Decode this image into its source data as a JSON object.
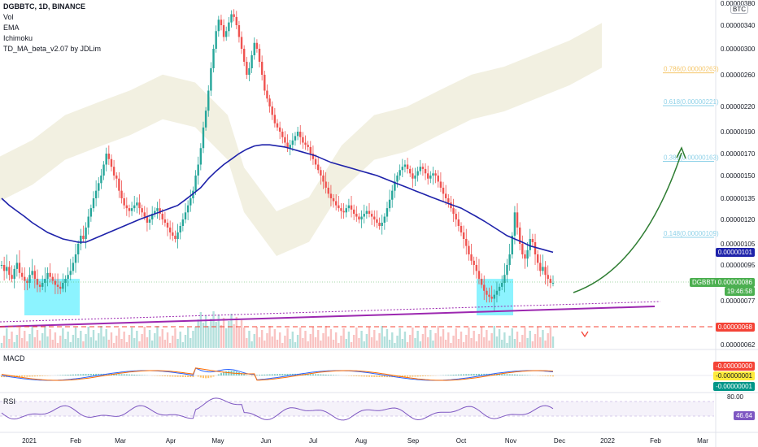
{
  "legend": {
    "title": "DGBBTC, 1D, BINANCE",
    "lines": [
      "Vol",
      "EMA",
      "Ichimoku",
      "TD_MA_beta_v2.07 by JDLim"
    ]
  },
  "unit_label": "BTC",
  "panes": {
    "macd": "MACD",
    "rsi": "RSI"
  },
  "colors": {
    "up": "#26a69a",
    "down": "#ef5350",
    "ema": "#1e22aa",
    "cloud": "#e8e3c8",
    "box": "#00e5ff",
    "trendline": "#9c27b0",
    "arrow": "#2e7d32",
    "dashed_red": "#f44336"
  },
  "chart_data": {
    "type": "candlestick",
    "symbol": "DGBBTC",
    "price_axis": {
      "ticks": [
        "0.00000380",
        "0.00000340",
        "0.00000300",
        "0.00000260",
        "0.00000220",
        "0.00000190",
        "0.00000170",
        "0.00000150",
        "0.00000135",
        "0.00000120",
        "0.00000105",
        "0.00000095",
        "0.00000077",
        "0.00000062"
      ],
      "tick_values": [
        380,
        340,
        300,
        260,
        220,
        190,
        170,
        150,
        135,
        120,
        105,
        95,
        77,
        62
      ],
      "range": [
        62,
        380
      ]
    },
    "time_axis": {
      "labels": [
        "2021",
        "Feb",
        "Mar",
        "Apr",
        "May",
        "Jun",
        "Jul",
        "Aug",
        "Sep",
        "Oct",
        "Nov",
        "Dec",
        "2022",
        "Feb",
        "Mar"
      ]
    },
    "price_tags": {
      "current": "0.00000086",
      "countdown": "19:46:58",
      "symbol_tag": "DGBBTC",
      "ema_value": "0.00000101",
      "stop_value": "0.00000068"
    },
    "fib_levels": [
      {
        "label": "0.786(0.00000263)",
        "value": 263,
        "color": "#f5c76b"
      },
      {
        "label": "0.618(0.00000221)",
        "value": 221,
        "color": "#8ed1e8"
      },
      {
        "label": "0.382(0.00000163)",
        "value": 163,
        "color": "#8ed1e8"
      },
      {
        "label": "0.148(0.00000109)",
        "value": 109,
        "color": "#8ed1e8"
      }
    ],
    "candles_close": [
      95,
      92,
      94,
      90,
      88,
      93,
      96,
      91,
      89,
      87,
      86,
      90,
      92,
      88,
      85,
      84,
      86,
      88,
      91,
      89,
      87,
      85,
      84,
      83,
      86,
      88,
      90,
      92,
      96,
      100,
      105,
      110,
      108,
      115,
      122,
      128,
      135,
      140,
      145,
      150,
      160,
      170,
      165,
      158,
      150,
      148,
      140,
      135,
      130,
      128,
      126,
      128,
      130,
      132,
      128,
      125,
      122,
      118,
      120,
      124,
      126,
      128,
      124,
      120,
      118,
      115,
      112,
      110,
      108,
      112,
      116,
      120,
      125,
      130,
      135,
      140,
      150,
      160,
      175,
      195,
      215,
      240,
      270,
      300,
      330,
      350,
      340,
      320,
      330,
      345,
      360,
      355,
      340,
      320,
      300,
      280,
      260,
      270,
      290,
      310,
      300,
      280,
      260,
      240,
      230,
      220,
      210,
      200,
      195,
      190,
      185,
      180,
      175,
      178,
      182,
      186,
      190,
      185,
      180,
      178,
      176,
      170,
      165,
      160,
      155,
      150,
      146,
      142,
      138,
      135,
      133,
      130,
      128,
      126,
      125,
      128,
      130,
      127,
      124,
      122,
      120,
      122,
      124,
      126,
      124,
      122,
      120,
      118,
      116,
      118,
      122,
      128,
      134,
      140,
      146,
      150,
      155,
      158,
      160,
      156,
      152,
      148,
      150,
      154,
      158,
      156,
      152,
      148,
      150,
      152,
      150,
      146,
      142,
      138,
      135,
      132,
      128,
      124,
      120,
      116,
      112,
      108,
      104,
      100,
      97,
      95,
      92,
      88,
      85,
      82,
      80,
      79,
      78,
      80,
      82,
      84,
      86,
      90,
      95,
      100,
      110,
      125,
      115,
      105,
      100,
      98,
      102,
      108,
      106,
      100,
      96,
      92,
      94,
      90,
      88,
      86,
      86
    ],
    "ema": [
      135,
      130,
      126,
      122,
      118,
      115,
      112,
      110,
      108,
      107,
      106,
      106,
      108,
      110,
      112,
      114,
      116,
      118,
      120,
      122,
      124,
      126,
      128,
      130,
      134,
      138,
      142,
      148,
      154,
      160,
      165,
      170,
      174,
      177,
      178,
      178,
      177,
      176,
      174,
      172,
      170,
      168,
      165,
      162,
      160,
      158,
      156,
      154,
      152,
      150,
      148,
      146,
      144,
      142,
      140,
      138,
      136,
      134,
      132,
      130,
      128,
      125,
      122,
      119,
      116,
      113,
      110,
      108,
      106,
      104,
      103,
      102,
      101
    ],
    "volume_note": "volume bars along price pane bottom",
    "macd": {
      "ylabels": [
        "-0.00000000",
        "-0.00000001",
        "-0.00000001"
      ]
    },
    "rsi": {
      "ylabels": [
        "80.00",
        "46.64"
      ],
      "value": 46.64
    }
  }
}
